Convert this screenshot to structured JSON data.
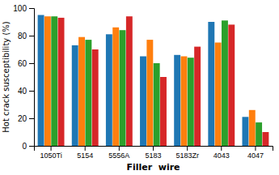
{
  "chart_data": {
    "type": "bar",
    "categories": [
      "1050Ti",
      "5154",
      "5556A",
      "5183",
      "5183Zr",
      "4043",
      "4047"
    ],
    "series": [
      {
        "values": [
          95,
          73,
          81,
          65,
          66,
          90,
          21
        ]
      },
      {
        "values": [
          94,
          79,
          86,
          77,
          65,
          75,
          26
        ]
      },
      {
        "values": [
          94,
          77,
          84,
          60,
          64,
          91,
          17
        ]
      },
      {
        "values": [
          93,
          70,
          94,
          50,
          72,
          88,
          10
        ]
      }
    ],
    "xlabel": "Filler  wire",
    "ylabel": "Hot crack susceptibility (%)",
    "ylim": [
      0,
      100
    ],
    "yticks": [
      0,
      20,
      40,
      60,
      80,
      100
    ],
    "grid": false
  }
}
